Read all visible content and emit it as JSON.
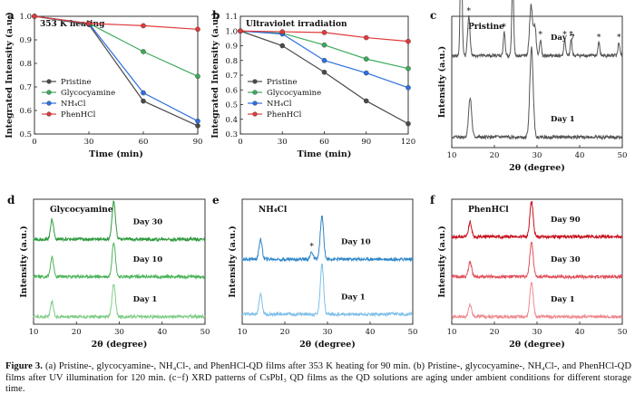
{
  "caption": {
    "label": "Figure 3.",
    "text": "(a) Pristine-, glycocyamine-, NH₄Cl-, and PhenHCl-QD films after 353 K heating for 90 min. (b) Pristine-, glycocyamine-, NH₄Cl-, and PhenHCl-QD films after UV illumination for 120 min. (c−f) XRD patterns of CsPbI₃ QD films as the QD solutions are aging under ambient conditions for different storage time."
  },
  "chart_data": [
    {
      "panel": "a",
      "type": "line",
      "title": "353 K heating",
      "xlabel": "Time (min)",
      "ylabel": "Integrated Intensity (a.u.)",
      "xlim": [
        0,
        90
      ],
      "ylim": [
        0.5,
        1.0
      ],
      "xticks": [
        0,
        30,
        60,
        90
      ],
      "yticks": [
        0.5,
        0.6,
        0.7,
        0.8,
        0.9,
        1.0
      ],
      "x": [
        0,
        30,
        60,
        90
      ],
      "legend_position": "bottom-left",
      "series": [
        {
          "name": "Pristine",
          "color": "#4a4a4a",
          "values": [
            1.0,
            0.965,
            0.64,
            0.535
          ]
        },
        {
          "name": "Glycocyamine",
          "color": "#3daa5c",
          "values": [
            1.0,
            0.97,
            0.85,
            0.745
          ]
        },
        {
          "name": "NH₄Cl",
          "color": "#2d6fe0",
          "values": [
            1.0,
            0.97,
            0.675,
            0.555
          ]
        },
        {
          "name": "PhenHCl",
          "color": "#e03a3a",
          "values": [
            1.0,
            0.97,
            0.96,
            0.945
          ]
        }
      ]
    },
    {
      "panel": "b",
      "type": "line",
      "title": "Ultraviolet irradiation",
      "xlabel": "Time (min)",
      "ylabel": "Integrated Intensity (a.u.)",
      "xlim": [
        0,
        120
      ],
      "ylim": [
        0.3,
        1.1
      ],
      "xticks": [
        0,
        30,
        60,
        90,
        120
      ],
      "yticks": [
        0.3,
        0.4,
        0.5,
        0.6,
        0.7,
        0.8,
        0.9,
        1.0,
        1.1
      ],
      "x": [
        0,
        30,
        60,
        90,
        120
      ],
      "legend_position": "bottom-left",
      "series": [
        {
          "name": "Pristine",
          "color": "#4a4a4a",
          "values": [
            1.0,
            0.9,
            0.72,
            0.525,
            0.37
          ]
        },
        {
          "name": "Glycocyamine",
          "color": "#3daa5c",
          "values": [
            1.0,
            0.985,
            0.905,
            0.81,
            0.745
          ]
        },
        {
          "name": "NH₄Cl",
          "color": "#2d6fe0",
          "values": [
            1.0,
            0.98,
            0.8,
            0.715,
            0.615
          ]
        },
        {
          "name": "PhenHCl",
          "color": "#e03a3a",
          "values": [
            1.0,
            0.995,
            0.99,
            0.955,
            0.93
          ]
        }
      ]
    },
    {
      "panel": "c",
      "type": "line",
      "title": "Pristine",
      "xlabel": "2θ (degree)",
      "ylabel": "Intensity (a.u.)",
      "xlim": [
        10,
        50
      ],
      "xticks": [
        10,
        20,
        30,
        40,
        50
      ],
      "series": [
        {
          "name": "Day 7",
          "color": "#555555",
          "baseline": 0.7,
          "peaks": [
            [
              12.2,
              0.95,
              0.3
            ],
            [
              14.0,
              0.3,
              0.4
            ],
            [
              22.3,
              0.18,
              0.3
            ],
            [
              24.3,
              0.62,
              0.3
            ],
            [
              28.6,
              0.38,
              0.5
            ],
            [
              29.5,
              0.22,
              0.4
            ],
            [
              30.8,
              0.12,
              0.3
            ],
            [
              36.5,
              0.12,
              0.3
            ],
            [
              38.0,
              0.12,
              0.3
            ],
            [
              44.5,
              0.1,
              0.3
            ],
            [
              49.2,
              0.1,
              0.3
            ]
          ]
        },
        {
          "name": "Day 1",
          "color": "#555555",
          "baseline": 0.08,
          "peaks": [
            [
              14.3,
              0.3,
              0.5
            ],
            [
              28.7,
              0.68,
              0.55
            ]
          ]
        }
      ],
      "stars": [
        12.2,
        14.0,
        22.3,
        24.3,
        30.8,
        36.5,
        38.0,
        44.5,
        49.2
      ]
    },
    {
      "panel": "d",
      "type": "line",
      "title": "Glycocyamine",
      "xlabel": "2θ (degree)",
      "ylabel": "Intensity (a.u.)",
      "xlim": [
        10,
        50
      ],
      "xticks": [
        10,
        20,
        30,
        40,
        50
      ],
      "series": [
        {
          "name": "Day 30",
          "color": "#2e9a3e",
          "baseline": 0.68,
          "peaks": [
            [
              14.3,
              0.16,
              0.5
            ],
            [
              28.7,
              0.3,
              0.55
            ]
          ]
        },
        {
          "name": "Day 10",
          "color": "#4cb45a",
          "baseline": 0.38,
          "peaks": [
            [
              14.3,
              0.16,
              0.5
            ],
            [
              28.7,
              0.28,
              0.55
            ]
          ]
        },
        {
          "name": "Day 1",
          "color": "#7fcc85",
          "baseline": 0.06,
          "peaks": [
            [
              14.3,
              0.12,
              0.5
            ],
            [
              28.7,
              0.26,
              0.55
            ]
          ]
        }
      ]
    },
    {
      "panel": "e",
      "type": "line",
      "title": "NH₄Cl",
      "xlabel": "2θ (degree)",
      "ylabel": "Intensity (a.u.)",
      "xlim": [
        10,
        50
      ],
      "xticks": [
        10,
        20,
        30,
        40,
        50
      ],
      "series": [
        {
          "name": "Day 10",
          "color": "#2e86c9",
          "baseline": 0.52,
          "peaks": [
            [
              14.3,
              0.16,
              0.5
            ],
            [
              26.3,
              0.06,
              0.4
            ],
            [
              28.7,
              0.34,
              0.55
            ]
          ]
        },
        {
          "name": "Day 1",
          "color": "#7fbfe8",
          "baseline": 0.08,
          "peaks": [
            [
              14.3,
              0.16,
              0.5
            ],
            [
              28.7,
              0.4,
              0.55
            ]
          ]
        }
      ],
      "stars": [
        26.3
      ]
    },
    {
      "panel": "f",
      "type": "line",
      "title": "PhenHCl",
      "xlabel": "2θ (degree)",
      "ylabel": "Intensity (a.u.)",
      "xlim": [
        10,
        50
      ],
      "xticks": [
        10,
        20,
        30,
        40,
        50
      ],
      "series": [
        {
          "name": "Day 90",
          "color": "#c8101e",
          "baseline": 0.7,
          "peaks": [
            [
              14.3,
              0.12,
              0.5
            ],
            [
              28.7,
              0.28,
              0.55
            ]
          ]
        },
        {
          "name": "Day 30",
          "color": "#e0505a",
          "baseline": 0.38,
          "peaks": [
            [
              14.3,
              0.12,
              0.5
            ],
            [
              28.7,
              0.28,
              0.55
            ]
          ]
        },
        {
          "name": "Day 1",
          "color": "#ee8a90",
          "baseline": 0.06,
          "peaks": [
            [
              14.3,
              0.1,
              0.5
            ],
            [
              28.7,
              0.28,
              0.55
            ]
          ]
        }
      ]
    }
  ]
}
